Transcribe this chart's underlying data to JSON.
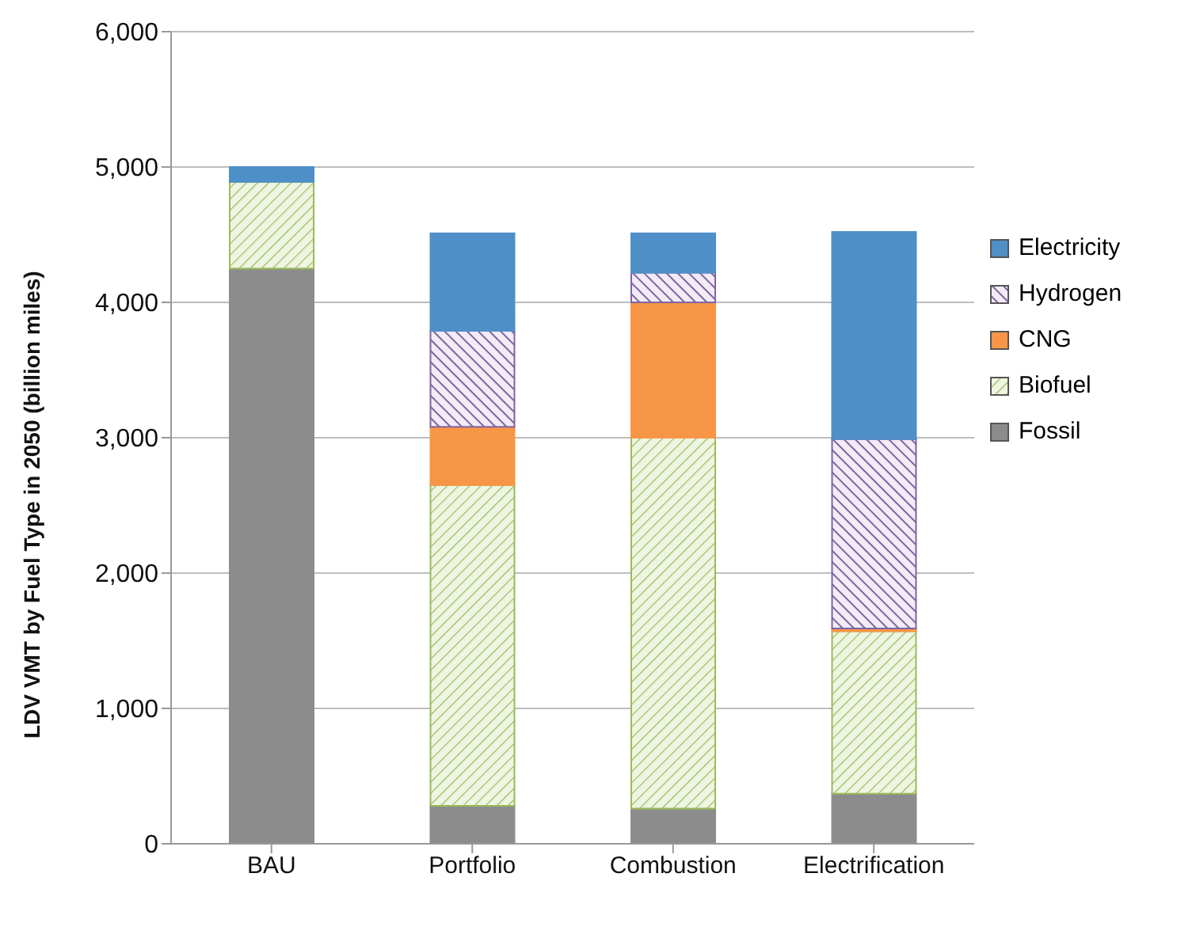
{
  "chart_data": {
    "type": "bar",
    "stacked": true,
    "ylabel": "LDV VMT by Fuel Type in 2050 (billion miles)",
    "categories": [
      "BAU",
      "Portfolio",
      "Combustion",
      "Electrification"
    ],
    "series": [
      {
        "name": "Fossil",
        "color": "#8c8c8c",
        "values": [
          4250,
          280,
          260,
          370
        ]
      },
      {
        "name": "Biofuel",
        "color": "#9bbb59",
        "values": [
          640,
          2370,
          2740,
          1200
        ]
      },
      {
        "name": "CNG",
        "color": "#f79646",
        "values": [
          0,
          430,
          1000,
          20
        ]
      },
      {
        "name": "Hydrogen",
        "color": "#8064a2",
        "values": [
          0,
          710,
          220,
          1400
        ]
      },
      {
        "name": "Electricity",
        "color": "#4f8fc7",
        "values": [
          110,
          720,
          290,
          1530
        ]
      }
    ],
    "ylim": [
      0,
      6000
    ],
    "yticks": [
      0,
      {
        "value": 1000,
        "label": "1,000"
      },
      {
        "value": 2000,
        "label": "2,000"
      },
      {
        "value": 3000,
        "label": "3,000"
      },
      {
        "value": 4000,
        "label": "4,000"
      },
      {
        "value": 5000,
        "label": "5,000"
      },
      {
        "value": 6000,
        "label": "6,000"
      }
    ],
    "grid": "y",
    "legend": "right"
  }
}
